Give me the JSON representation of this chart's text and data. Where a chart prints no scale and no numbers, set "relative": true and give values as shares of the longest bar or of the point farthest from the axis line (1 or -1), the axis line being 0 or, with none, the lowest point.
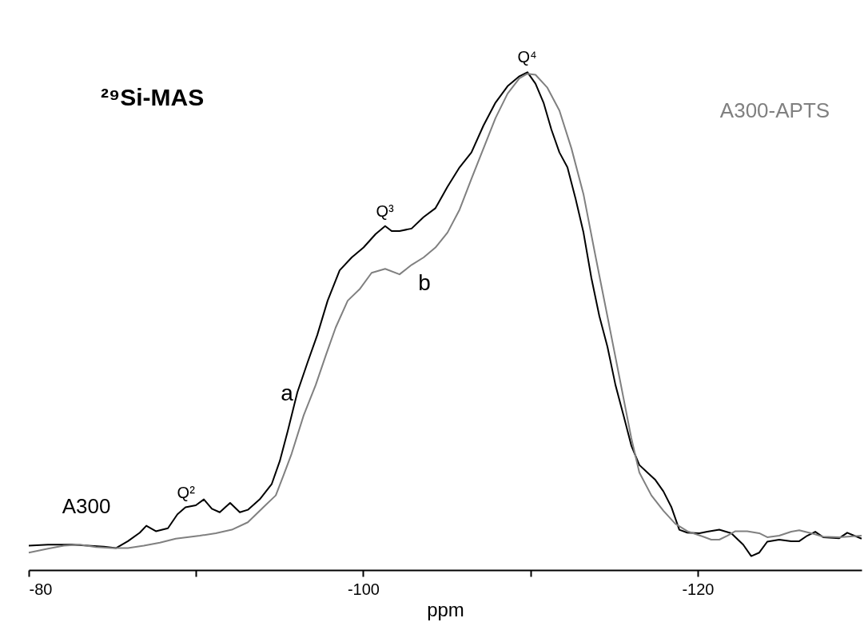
{
  "chart_data": {
    "type": "line",
    "relative": true,
    "xlabel": "ppm",
    "xlim": [
      -80,
      -129.8
    ],
    "xticks": [
      -80,
      {
        "value": -90,
        "label": null
      },
      -100,
      {
        "value": -110,
        "label": null
      },
      -120
    ],
    "grid": false,
    "legend": false,
    "marker": "none",
    "line_style": "solid",
    "annotations": [
      "²⁹Si-MAS",
      {
        "text": "Q²",
        "x": -89.4,
        "y": 0.126
      },
      {
        "text": "Q³",
        "x": -101.3,
        "y": 0.691
      },
      {
        "text": "Q⁴",
        "x": -109.8,
        "y": 1
      },
      "a",
      "b"
    ],
    "series": [
      {
        "name": "A300",
        "color": "#000000",
        "x": [
          -80.0,
          -81.15,
          -82.58,
          -83.54,
          -84.49,
          -85.21,
          -85.93,
          -86.64,
          -87.03,
          -87.6,
          -88.32,
          -88.89,
          -89.37,
          -89.99,
          -90.47,
          -90.95,
          -91.42,
          -92.04,
          -92.62,
          -93.1,
          -93.81,
          -94.53,
          -95.01,
          -95.49,
          -96.06,
          -96.68,
          -97.25,
          -97.87,
          -98.59,
          -99.31,
          -100.02,
          -100.74,
          -101.31,
          -101.7,
          -102.17,
          -102.89,
          -103.61,
          -104.32,
          -105.04,
          -105.76,
          -106.47,
          -107.19,
          -107.91,
          -108.63,
          -109.34,
          -109.82,
          -110.3,
          -110.78,
          -111.25,
          -111.73,
          -112.21,
          -112.69,
          -113.17,
          -113.64,
          -114.12,
          -114.6,
          -115.08,
          -115.56,
          -116.03,
          -116.51,
          -116.99,
          -117.47,
          -117.95,
          -118.42,
          -118.9,
          -119.38,
          -120.1,
          -120.57,
          -121.29,
          -122.01,
          -122.72,
          -123.2,
          -123.68,
          -124.16,
          -124.87,
          -125.59,
          -126.07,
          -126.55,
          -127.03,
          -127.5,
          -128.46,
          -128.94,
          -129.8
        ],
        "values": [
          0.049,
          0.051,
          0.051,
          0.049,
          0.047,
          0.044,
          0.058,
          0.075,
          0.089,
          0.078,
          0.084,
          0.112,
          0.126,
          0.13,
          0.142,
          0.123,
          0.116,
          0.135,
          0.116,
          0.121,
          0.142,
          0.173,
          0.219,
          0.28,
          0.357,
          0.418,
          0.472,
          0.541,
          0.602,
          0.628,
          0.648,
          0.675,
          0.691,
          0.681,
          0.681,
          0.686,
          0.709,
          0.727,
          0.77,
          0.809,
          0.839,
          0.893,
          0.939,
          0.972,
          0.992,
          1,
          0.977,
          0.939,
          0.885,
          0.839,
          0.809,
          0.747,
          0.678,
          0.587,
          0.51,
          0.449,
          0.372,
          0.311,
          0.25,
          0.211,
          0.196,
          0.181,
          0.158,
          0.127,
          0.081,
          0.075,
          0.074,
          0.077,
          0.081,
          0.074,
          0.051,
          0.028,
          0.035,
          0.057,
          0.061,
          0.058,
          0.058,
          0.069,
          0.077,
          0.066,
          0.064,
          0.075,
          0.063
        ]
      },
      {
        "name": "A300-APTS",
        "color": "#808080",
        "x": [
          -80.0,
          -81.15,
          -82.1,
          -83.06,
          -84.01,
          -84.97,
          -85.93,
          -86.88,
          -87.84,
          -88.79,
          -90.23,
          -91.18,
          -92.14,
          -93.1,
          -94.05,
          -94.77,
          -95.24,
          -95.72,
          -96.44,
          -97.16,
          -97.78,
          -98.35,
          -99.07,
          -99.78,
          -100.5,
          -101.31,
          -102.17,
          -102.89,
          -103.61,
          -104.32,
          -105.04,
          -105.76,
          -106.47,
          -107.19,
          -107.91,
          -108.63,
          -109.34,
          -109.82,
          -110.3,
          -111.01,
          -111.73,
          -112.45,
          -113.17,
          -113.88,
          -114.6,
          -115.32,
          -116.03,
          -116.51,
          -117.23,
          -117.95,
          -118.66,
          -119.38,
          -120.33,
          -120.81,
          -121.29,
          -121.77,
          -122.25,
          -122.96,
          -123.68,
          -124.16,
          -124.87,
          -125.59,
          -126.07,
          -126.79,
          -127.5,
          -128.46,
          -129.8
        ],
        "values": [
          0.035,
          0.043,
          0.049,
          0.051,
          0.046,
          0.044,
          0.044,
          0.049,
          0.055,
          0.063,
          0.069,
          0.074,
          0.081,
          0.096,
          0.127,
          0.15,
          0.191,
          0.234,
          0.311,
          0.372,
          0.433,
          0.487,
          0.541,
          0.564,
          0.597,
          0.605,
          0.594,
          0.613,
          0.628,
          0.648,
          0.678,
          0.724,
          0.786,
          0.847,
          0.908,
          0.957,
          0.988,
          0.997,
          0.995,
          0.969,
          0.923,
          0.847,
          0.755,
          0.632,
          0.51,
          0.387,
          0.265,
          0.196,
          0.15,
          0.119,
          0.093,
          0.078,
          0.067,
          0.061,
          0.061,
          0.069,
          0.078,
          0.078,
          0.074,
          0.066,
          0.069,
          0.077,
          0.08,
          0.074,
          0.067,
          0.066,
          0.069
        ]
      }
    ]
  }
}
